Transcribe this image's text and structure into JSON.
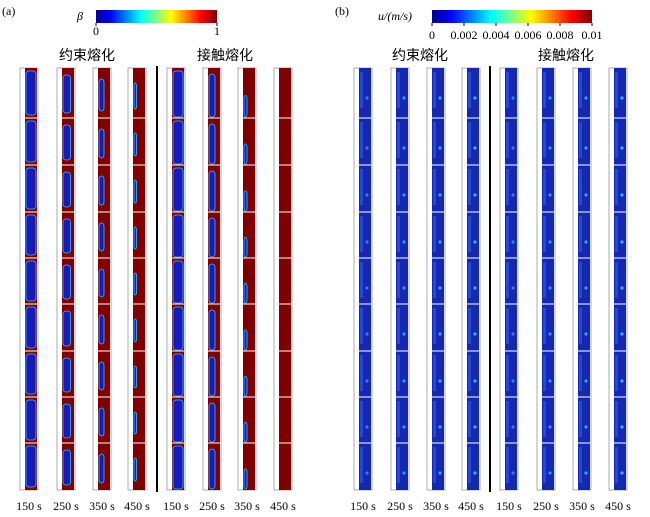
{
  "panels": [
    {
      "label": "(a)",
      "colorbar": {
        "title": "β",
        "lim": [
          0,
          1
        ],
        "ticks": [
          0,
          1
        ]
      },
      "groups": [
        "约束熔化",
        "接触熔化"
      ],
      "times": [
        "150 s",
        "250 s",
        "350 s",
        "450 s",
        "150 s",
        "250 s",
        "350 s",
        "450 s"
      ]
    },
    {
      "label": "(b)",
      "colorbar": {
        "title": "u/(m/s)",
        "lim": [
          0,
          0.01
        ],
        "ticks": [
          0,
          0.002,
          0.004,
          0.006,
          0.008,
          0.01
        ]
      },
      "groups": [
        "约束熔化",
        "接触熔化"
      ],
      "times": [
        "150 s",
        "250 s",
        "350 s",
        "450 s",
        "150 s",
        "250 s",
        "350 s",
        "450 s"
      ]
    }
  ]
}
